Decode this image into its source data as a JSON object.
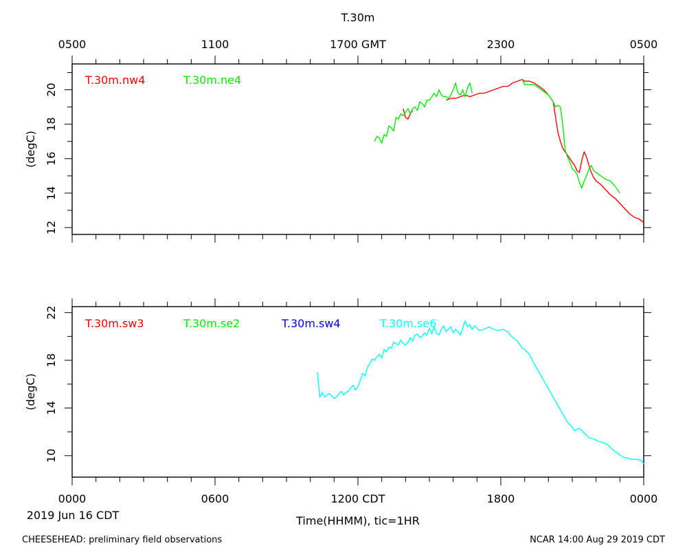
{
  "chart_data": [
    {
      "type": "line",
      "title": "T.30m",
      "ylabel": "(degC)",
      "ylim": [
        11.6,
        21.5
      ],
      "yticks": [
        12,
        14,
        16,
        18,
        20
      ],
      "xlim": [
        0,
        24
      ],
      "top_axis": {
        "tick_labels": [
          "0500",
          "1100",
          "1700 GMT",
          "2300",
          "0500"
        ],
        "tick_hours": [
          0,
          6,
          12,
          18,
          24
        ]
      },
      "series": [
        {
          "name": "T.30m.nw4",
          "color": "#ff0000",
          "points": [
            [
              13.9,
              18.9
            ],
            [
              14.0,
              18.4
            ],
            [
              14.1,
              18.3
            ],
            [
              14.2,
              18.6
            ],
            [
              14.3,
              18.8
            ],
            [
              15.7,
              19.4
            ],
            [
              15.9,
              19.5
            ],
            [
              16.1,
              19.5
            ],
            [
              16.3,
              19.6
            ],
            [
              16.5,
              19.7
            ],
            [
              16.7,
              19.6
            ],
            [
              16.9,
              19.7
            ],
            [
              17.1,
              19.8
            ],
            [
              17.3,
              19.8
            ],
            [
              17.5,
              19.9
            ],
            [
              17.7,
              20.0
            ],
            [
              17.9,
              20.1
            ],
            [
              18.1,
              20.2
            ],
            [
              18.3,
              20.2
            ],
            [
              18.5,
              20.4
            ],
            [
              18.7,
              20.5
            ],
            [
              18.9,
              20.6
            ],
            [
              19.0,
              20.5
            ],
            [
              19.2,
              20.5
            ],
            [
              19.4,
              20.4
            ],
            [
              19.6,
              20.2
            ],
            [
              19.8,
              20.0
            ],
            [
              20.0,
              19.7
            ],
            [
              20.2,
              19.3
            ],
            [
              20.3,
              18.4
            ],
            [
              20.4,
              17.5
            ],
            [
              20.5,
              17.0
            ],
            [
              20.6,
              16.6
            ],
            [
              20.8,
              16.2
            ],
            [
              21.0,
              15.8
            ],
            [
              21.1,
              15.6
            ],
            [
              21.2,
              15.3
            ],
            [
              21.3,
              15.2
            ],
            [
              21.4,
              15.9
            ],
            [
              21.5,
              16.4
            ],
            [
              21.6,
              16.1
            ],
            [
              21.7,
              15.6
            ],
            [
              21.8,
              15.2
            ],
            [
              21.9,
              14.9
            ],
            [
              22.0,
              14.7
            ],
            [
              22.2,
              14.5
            ],
            [
              22.4,
              14.2
            ],
            [
              22.6,
              13.9
            ],
            [
              22.8,
              13.7
            ],
            [
              23.0,
              13.4
            ],
            [
              23.2,
              13.1
            ],
            [
              23.4,
              12.8
            ],
            [
              23.6,
              12.6
            ],
            [
              23.8,
              12.5
            ],
            [
              24.0,
              12.3
            ]
          ]
        },
        {
          "name": "T.30m.ne4",
          "color": "#00ee00",
          "points": [
            [
              12.7,
              17.0
            ],
            [
              12.8,
              17.3
            ],
            [
              12.9,
              17.2
            ],
            [
              13.0,
              16.9
            ],
            [
              13.1,
              17.4
            ],
            [
              13.2,
              17.3
            ],
            [
              13.3,
              17.9
            ],
            [
              13.4,
              17.8
            ],
            [
              13.5,
              17.6
            ],
            [
              13.6,
              18.4
            ],
            [
              13.7,
              18.3
            ],
            [
              13.8,
              18.6
            ],
            [
              13.9,
              18.5
            ],
            [
              14.0,
              18.7
            ],
            [
              14.1,
              18.9
            ],
            [
              14.2,
              18.6
            ],
            [
              14.3,
              18.9
            ],
            [
              14.4,
              19.0
            ],
            [
              14.5,
              18.8
            ],
            [
              14.6,
              19.3
            ],
            [
              14.7,
              19.2
            ],
            [
              14.8,
              19.0
            ],
            [
              14.9,
              19.4
            ],
            [
              15.0,
              19.4
            ],
            [
              15.1,
              19.6
            ],
            [
              15.2,
              19.8
            ],
            [
              15.3,
              19.6
            ],
            [
              15.4,
              20.0
            ],
            [
              15.5,
              19.7
            ],
            [
              15.6,
              19.6
            ],
            [
              15.7,
              19.6
            ],
            [
              15.8,
              19.5
            ],
            [
              15.9,
              19.7
            ],
            [
              16.0,
              20.0
            ],
            [
              16.1,
              20.4
            ],
            [
              16.2,
              19.8
            ],
            [
              16.3,
              19.7
            ],
            [
              16.4,
              20.0
            ],
            [
              16.5,
              19.6
            ],
            [
              16.6,
              20.1
            ],
            [
              16.7,
              20.4
            ],
            [
              16.8,
              19.8
            ],
            [
              18.9,
              20.6
            ],
            [
              19.0,
              20.3
            ],
            [
              19.2,
              20.3
            ],
            [
              19.4,
              20.3
            ],
            [
              19.6,
              20.1
            ],
            [
              19.8,
              19.9
            ],
            [
              20.0,
              19.7
            ],
            [
              20.1,
              19.5
            ],
            [
              20.2,
              19.3
            ],
            [
              20.3,
              19.0
            ],
            [
              20.4,
              19.1
            ],
            [
              20.5,
              19.0
            ],
            [
              20.6,
              18.0
            ],
            [
              20.7,
              16.5
            ],
            [
              20.8,
              16.1
            ],
            [
              20.9,
              15.8
            ],
            [
              21.0,
              15.4
            ],
            [
              21.1,
              15.3
            ],
            [
              21.2,
              15.1
            ],
            [
              21.3,
              14.6
            ],
            [
              21.4,
              14.3
            ],
            [
              21.5,
              14.7
            ],
            [
              21.6,
              15.0
            ],
            [
              21.7,
              15.4
            ],
            [
              21.8,
              15.6
            ],
            [
              21.9,
              15.3
            ],
            [
              22.0,
              15.2
            ],
            [
              22.2,
              15.0
            ],
            [
              22.4,
              14.8
            ],
            [
              22.6,
              14.7
            ],
            [
              22.8,
              14.4
            ],
            [
              22.9,
              14.2
            ],
            [
              23.0,
              14.0
            ]
          ]
        }
      ]
    },
    {
      "type": "line",
      "ylabel": "(degC)",
      "ylim": [
        8.2,
        22.5
      ],
      "yticks": [
        10,
        14,
        18,
        22
      ],
      "xlim": [
        0,
        24
      ],
      "xlabel": "Time(HHMM), tic=1HR",
      "bottom_axis": {
        "tick_labels": [
          "0000",
          "0600",
          "1200 CDT",
          "1800",
          "0000"
        ],
        "tick_hours": [
          0,
          6,
          12,
          18,
          24
        ]
      },
      "date_label": "2019 Jun 16 CDT",
      "series": [
        {
          "name": "T.30m.sw3",
          "color": "#ff0000",
          "points": []
        },
        {
          "name": "T.30m.se2",
          "color": "#00ee00",
          "points": []
        },
        {
          "name": "T.30m.sw4",
          "color": "#0000dd",
          "points": []
        },
        {
          "name": "T.30m.se6",
          "color": "#00ffff",
          "points": [
            [
              10.3,
              17.0
            ],
            [
              10.4,
              14.9
            ],
            [
              10.5,
              15.3
            ],
            [
              10.6,
              14.9
            ],
            [
              10.7,
              15.1
            ],
            [
              10.8,
              15.2
            ],
            [
              10.9,
              15.0
            ],
            [
              11.0,
              14.8
            ],
            [
              11.1,
              14.9
            ],
            [
              11.2,
              15.2
            ],
            [
              11.3,
              15.4
            ],
            [
              11.4,
              15.1
            ],
            [
              11.5,
              15.3
            ],
            [
              11.6,
              15.4
            ],
            [
              11.7,
              15.7
            ],
            [
              11.8,
              15.9
            ],
            [
              11.9,
              15.5
            ],
            [
              12.0,
              15.8
            ],
            [
              12.1,
              16.3
            ],
            [
              12.2,
              16.9
            ],
            [
              12.3,
              16.7
            ],
            [
              12.4,
              17.4
            ],
            [
              12.5,
              17.7
            ],
            [
              12.6,
              18.1
            ],
            [
              12.7,
              18.0
            ],
            [
              12.8,
              18.3
            ],
            [
              12.9,
              18.5
            ],
            [
              13.0,
              18.2
            ],
            [
              13.1,
              18.9
            ],
            [
              13.2,
              18.7
            ],
            [
              13.3,
              19.1
            ],
            [
              13.4,
              19.0
            ],
            [
              13.5,
              19.5
            ],
            [
              13.6,
              19.4
            ],
            [
              13.7,
              19.3
            ],
            [
              13.8,
              19.7
            ],
            [
              13.9,
              19.4
            ],
            [
              14.0,
              19.3
            ],
            [
              14.1,
              19.5
            ],
            [
              14.2,
              19.9
            ],
            [
              14.3,
              19.6
            ],
            [
              14.4,
              20.1
            ],
            [
              14.5,
              20.2
            ],
            [
              14.6,
              19.9
            ],
            [
              14.7,
              20.0
            ],
            [
              14.8,
              20.3
            ],
            [
              14.9,
              20.1
            ],
            [
              15.0,
              20.7
            ],
            [
              15.1,
              20.2
            ],
            [
              15.2,
              20.8
            ],
            [
              15.3,
              20.3
            ],
            [
              15.4,
              20.1
            ],
            [
              15.5,
              20.6
            ],
            [
              15.6,
              20.9
            ],
            [
              15.7,
              20.4
            ],
            [
              15.8,
              20.6
            ],
            [
              15.9,
              20.8
            ],
            [
              16.0,
              20.3
            ],
            [
              16.1,
              20.6
            ],
            [
              16.2,
              20.4
            ],
            [
              16.3,
              20.1
            ],
            [
              16.4,
              20.7
            ],
            [
              16.5,
              21.3
            ],
            [
              16.6,
              20.8
            ],
            [
              16.7,
              21.0
            ],
            [
              16.8,
              20.6
            ],
            [
              16.9,
              20.9
            ],
            [
              17.0,
              20.7
            ],
            [
              17.1,
              20.5
            ],
            [
              17.3,
              20.6
            ],
            [
              17.5,
              20.8
            ],
            [
              17.7,
              20.6
            ],
            [
              17.9,
              20.5
            ],
            [
              18.1,
              20.6
            ],
            [
              18.3,
              20.4
            ],
            [
              18.4,
              20.1
            ],
            [
              18.5,
              19.9
            ],
            [
              18.7,
              19.6
            ],
            [
              18.9,
              19.0
            ],
            [
              19.0,
              18.9
            ],
            [
              19.2,
              18.5
            ],
            [
              19.4,
              17.7
            ],
            [
              19.6,
              17.0
            ],
            [
              19.8,
              16.3
            ],
            [
              20.0,
              15.6
            ],
            [
              20.2,
              14.9
            ],
            [
              20.4,
              14.2
            ],
            [
              20.6,
              13.5
            ],
            [
              20.8,
              12.8
            ],
            [
              21.0,
              12.4
            ],
            [
              21.1,
              12.1
            ],
            [
              21.3,
              12.3
            ],
            [
              21.5,
              11.9
            ],
            [
              21.7,
              11.5
            ],
            [
              21.9,
              11.4
            ],
            [
              22.1,
              11.2
            ],
            [
              22.3,
              11.1
            ],
            [
              22.5,
              10.9
            ],
            [
              22.7,
              10.5
            ],
            [
              22.9,
              10.2
            ],
            [
              23.1,
              9.9
            ],
            [
              23.3,
              9.8
            ],
            [
              23.5,
              9.7
            ],
            [
              23.7,
              9.7
            ],
            [
              23.9,
              9.6
            ],
            [
              24.0,
              9.3
            ]
          ]
        }
      ]
    }
  ],
  "footer": {
    "left": "CHEESEHEAD: preliminary field observations",
    "right": "NCAR 14:00 Aug 29 2019 CDT"
  }
}
